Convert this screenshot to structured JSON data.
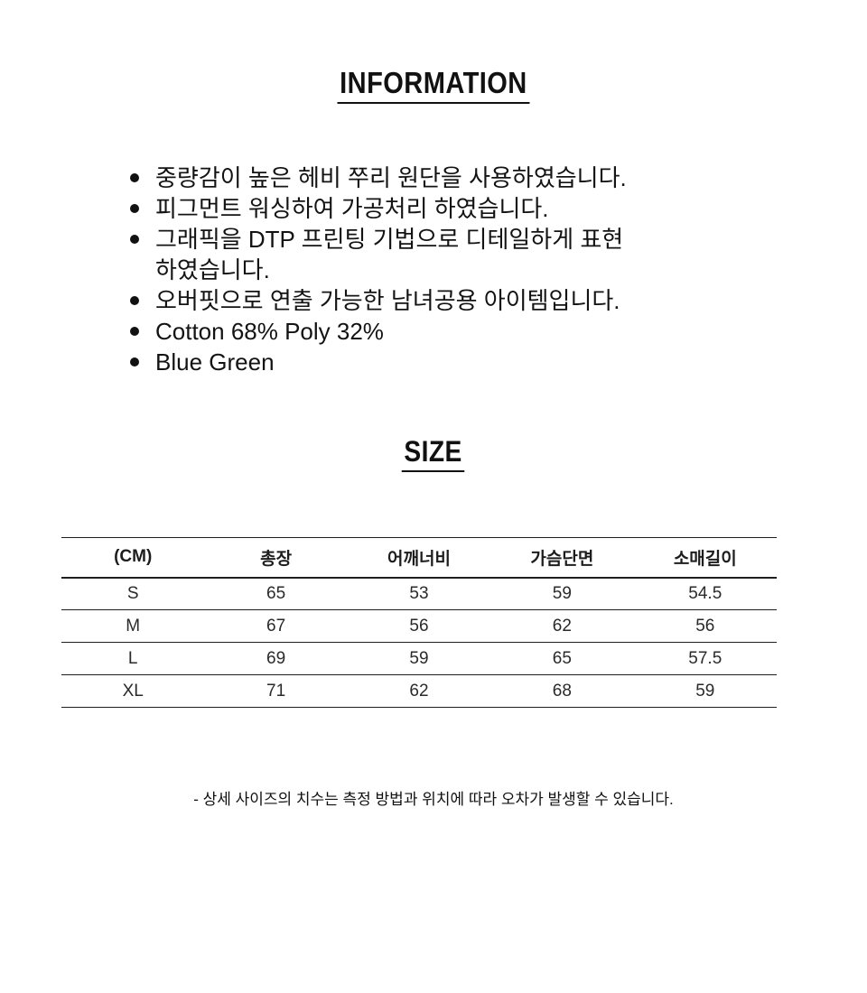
{
  "page": {
    "background": "#ffffff",
    "text_color": "#111111",
    "line_color": "#1f1f1f"
  },
  "icons": {
    "bullet-dot": "●"
  },
  "information": {
    "title": "INFORMATION",
    "bullets": [
      "중량감이 높은 헤비 쭈리 원단을 사용하였습니다.",
      "피그먼트 워싱하여 가공처리 하였습니다.",
      "그래픽을 DTP 프린팅 기법으로 디테일하게 표현 하였습니다.",
      "오버핏으로 연출 가능한 남녀공용 아이템입니다.",
      "Cotton 68% Poly 32%",
      "Blue Green"
    ]
  },
  "size_section": {
    "title": "SIZE",
    "table": {
      "headers": [
        "(CM)",
        "총장",
        "어깨너비",
        "가슴단면",
        "소매길이"
      ],
      "rows": [
        {
          "label": "S",
          "values": [
            "65",
            "53",
            "59",
            "54.5"
          ]
        },
        {
          "label": "M",
          "values": [
            "67",
            "56",
            "62",
            "56"
          ]
        },
        {
          "label": "L",
          "values": [
            "69",
            "59",
            "65",
            "57.5"
          ]
        },
        {
          "label": "XL",
          "values": [
            "71",
            "62",
            "68",
            "59"
          ]
        }
      ]
    },
    "footnote": "- 상세 사이즈의 치수는 측정 방법과 위치에 따라 오차가 발생할 수 있습니다."
  }
}
